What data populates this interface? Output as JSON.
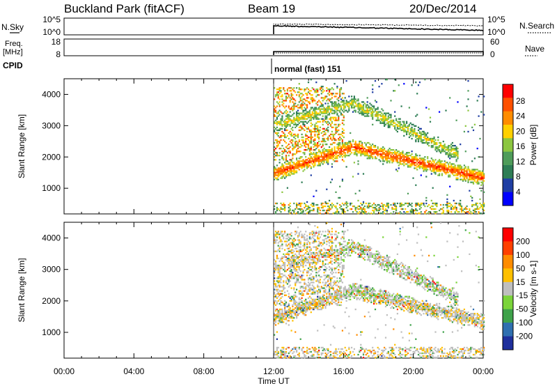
{
  "header": {
    "station": "Buckland Park (fitACF)",
    "beam": "Beam 19",
    "date": "20/Dec/2014"
  },
  "strip": {
    "nsky_label": "N.Sky",
    "nsky_ticks": [
      "10^5",
      "10^0"
    ],
    "nsearch_label": "N.Search",
    "nsearch_ticks": [
      "10^5",
      "10^0"
    ],
    "freq_label": "Freq.",
    "freq_unit": "[MHz]",
    "freq_ticks": [
      "18",
      "8"
    ],
    "nave_label": "Nave",
    "nave_ticks": [
      "60",
      "0"
    ],
    "cpid_label": "CPID",
    "cpid_text": "normal (fast) 151"
  },
  "xaxis": {
    "label": "Time UT",
    "ticks": [
      "00:00",
      "04:00",
      "08:00",
      "12:00",
      "16:00",
      "20:00",
      "00:00"
    ]
  },
  "chart_data": [
    {
      "type": "heatmap",
      "quantity": "Power",
      "ylabel": "Slant Range [km]",
      "yticks": [
        "4000",
        "3000",
        "2000",
        "1000"
      ],
      "ylim": [
        180,
        4500
      ],
      "x_range_hours": [
        0,
        24
      ],
      "data_start_hour": 12,
      "colorbar_label": "Power [dB]",
      "colorbar_ticks": [
        "28",
        "24",
        "20",
        "16",
        "12",
        "8",
        "4"
      ],
      "colorbar_range": [
        0,
        30
      ],
      "colors": [
        "#0000ff",
        "#1f3ea3",
        "#2e7d55",
        "#4f9c5a",
        "#8cc640",
        "#ffd000",
        "#ff8c00",
        "#ff5000",
        "#ff0000"
      ]
    },
    {
      "type": "heatmap",
      "quantity": "Velocity",
      "ylabel": "Slant Range [km]",
      "yticks": [
        "4000",
        "3000",
        "2000",
        "1000"
      ],
      "ylim": [
        180,
        4500
      ],
      "x_range_hours": [
        0,
        24
      ],
      "data_start_hour": 12,
      "colorbar_label": "Velocity [m s-1]",
      "colorbar_ticks": [
        "200",
        "100",
        "50",
        "15",
        "-15",
        "-50",
        "-100",
        "-200"
      ],
      "colorbar_range": [
        -250,
        250
      ],
      "colors": [
        "#1e2f9c",
        "#2f6fb0",
        "#3ea24a",
        "#7bd43a",
        "#bfbfbf",
        "#ffc000",
        "#ff8c00",
        "#ff4000",
        "#ff0000"
      ]
    }
  ]
}
